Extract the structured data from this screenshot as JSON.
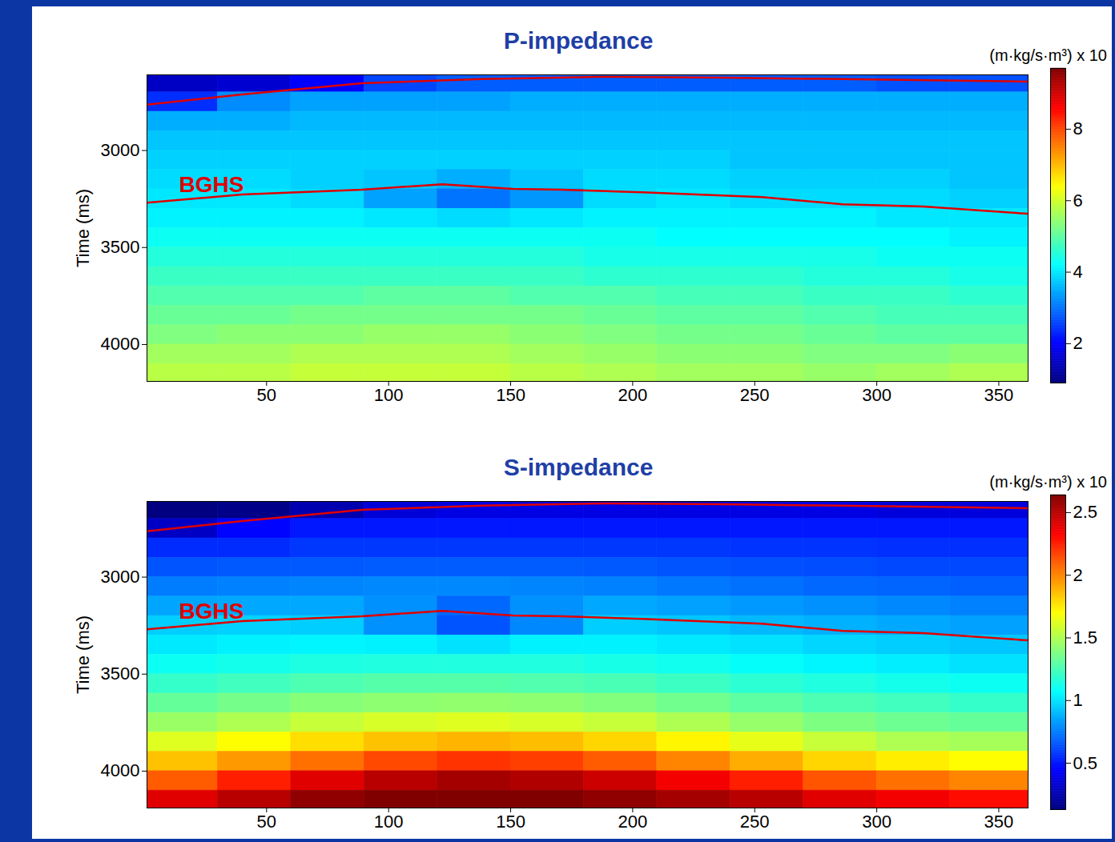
{
  "chart_data": [
    {
      "type": "heatmap",
      "title": "P-impedance",
      "ylabel": "Time (ms)",
      "xlim": [
        1,
        362
      ],
      "xticks": [
        50,
        100,
        150,
        200,
        250,
        300,
        350
      ],
      "ylim": [
        2610,
        4190
      ],
      "yticks": [
        3000,
        3500,
        4000
      ],
      "colorbar_label": "(m·kg/s·m³) x 10",
      "colorbar_range": [
        0.9,
        9.7
      ],
      "colorbar_ticks": [
        2,
        4,
        6,
        8
      ],
      "cells": {
        "x": [
          15,
          45,
          75,
          105,
          135,
          165,
          195,
          225,
          255,
          285,
          315,
          345
        ],
        "y": [
          2650,
          2750,
          2850,
          2950,
          3050,
          3150,
          3250,
          3350,
          3450,
          3550,
          3650,
          3750,
          3850,
          3950,
          4050,
          4150
        ],
        "values": [
          [
            1.5,
            1.6,
            2.0,
            2.6,
            2.8,
            2.8,
            2.8,
            2.8,
            2.8,
            2.8,
            2.7,
            2.7
          ],
          [
            2.4,
            3.2,
            3.4,
            3.4,
            3.4,
            3.5,
            3.5,
            3.5,
            3.5,
            3.5,
            3.5,
            3.5
          ],
          [
            3.5,
            3.5,
            3.6,
            3.6,
            3.6,
            3.6,
            3.6,
            3.6,
            3.6,
            3.6,
            3.6,
            3.6
          ],
          [
            3.7,
            3.7,
            3.7,
            3.7,
            3.7,
            3.7,
            3.7,
            3.7,
            3.7,
            3.7,
            3.7,
            3.7
          ],
          [
            3.8,
            3.8,
            3.8,
            3.8,
            3.8,
            3.8,
            3.8,
            3.8,
            3.7,
            3.7,
            3.7,
            3.7
          ],
          [
            3.9,
            3.9,
            3.8,
            3.7,
            3.5,
            3.7,
            3.9,
            3.9,
            3.8,
            3.8,
            3.8,
            3.7
          ],
          [
            4.0,
            4.0,
            3.9,
            3.4,
            3.0,
            3.3,
            3.9,
            4.0,
            3.9,
            3.9,
            3.9,
            3.8
          ],
          [
            4.1,
            4.1,
            4.1,
            4.0,
            3.9,
            4.0,
            4.1,
            4.1,
            4.1,
            4.1,
            4.0,
            4.0
          ],
          [
            4.3,
            4.3,
            4.3,
            4.3,
            4.3,
            4.3,
            4.3,
            4.2,
            4.2,
            4.2,
            4.2,
            4.1
          ],
          [
            4.5,
            4.5,
            4.5,
            4.5,
            4.5,
            4.5,
            4.4,
            4.4,
            4.4,
            4.4,
            4.3,
            4.3
          ],
          [
            4.7,
            4.7,
            4.7,
            4.7,
            4.7,
            4.7,
            4.6,
            4.6,
            4.6,
            4.5,
            4.5,
            4.4
          ],
          [
            4.9,
            4.9,
            4.9,
            5.0,
            5.0,
            4.9,
            4.9,
            4.8,
            4.8,
            4.7,
            4.7,
            4.6
          ],
          [
            5.1,
            5.1,
            5.2,
            5.2,
            5.2,
            5.2,
            5.1,
            5.0,
            5.0,
            4.9,
            4.8,
            4.8
          ],
          [
            5.3,
            5.4,
            5.4,
            5.5,
            5.5,
            5.4,
            5.3,
            5.2,
            5.2,
            5.1,
            5.0,
            5.0
          ],
          [
            5.6,
            5.6,
            5.7,
            5.7,
            5.7,
            5.6,
            5.5,
            5.4,
            5.4,
            5.3,
            5.3,
            5.4
          ],
          [
            5.8,
            5.8,
            5.9,
            5.9,
            5.9,
            5.8,
            5.7,
            5.6,
            5.6,
            5.5,
            5.6,
            5.7
          ]
        ]
      },
      "horizons": [
        {
          "color": "#e00000",
          "x": [
            1,
            40,
            89,
            138,
            187,
            237,
            286,
            362
          ],
          "values": [
            2764,
            2711,
            2653,
            2632,
            2620,
            2624,
            2632,
            2645
          ]
        },
        {
          "name": "BGHS",
          "color": "#e00000",
          "x": [
            1,
            40,
            89,
            122,
            151,
            171,
            204,
            253,
            286,
            319,
            362
          ],
          "values": [
            3269,
            3227,
            3202,
            3174,
            3198,
            3202,
            3215,
            3240,
            3277,
            3289,
            3326
          ]
        }
      ]
    },
    {
      "type": "heatmap",
      "title": "S-impedance",
      "ylabel": "Time (ms)",
      "xlim": [
        1,
        362
      ],
      "xticks": [
        50,
        100,
        150,
        200,
        250,
        300,
        350
      ],
      "ylim": [
        2610,
        4190
      ],
      "yticks": [
        3000,
        3500,
        4000
      ],
      "colorbar_label": "(m·kg/s·m³) x 10",
      "colorbar_range": [
        0.13,
        2.64
      ],
      "colorbar_ticks": [
        0.5,
        1,
        1.5,
        2,
        2.5
      ],
      "cells": {
        "x": [
          15,
          45,
          75,
          105,
          135,
          165,
          195,
          225,
          255,
          285,
          315,
          345
        ],
        "y": [
          2650,
          2750,
          2850,
          2950,
          3050,
          3150,
          3250,
          3350,
          3450,
          3550,
          3650,
          3750,
          3850,
          3950,
          4050,
          4150
        ],
        "values": [
          [
            0.13,
            0.15,
            0.25,
            0.35,
            0.38,
            0.38,
            0.38,
            0.38,
            0.38,
            0.38,
            0.36,
            0.36
          ],
          [
            0.3,
            0.45,
            0.5,
            0.5,
            0.5,
            0.5,
            0.5,
            0.5,
            0.5,
            0.5,
            0.5,
            0.5
          ],
          [
            0.55,
            0.55,
            0.58,
            0.58,
            0.58,
            0.58,
            0.58,
            0.58,
            0.57,
            0.57,
            0.56,
            0.56
          ],
          [
            0.65,
            0.66,
            0.66,
            0.67,
            0.67,
            0.67,
            0.66,
            0.65,
            0.64,
            0.63,
            0.62,
            0.62
          ],
          [
            0.75,
            0.76,
            0.77,
            0.78,
            0.78,
            0.77,
            0.76,
            0.74,
            0.72,
            0.7,
            0.69,
            0.68
          ],
          [
            0.85,
            0.86,
            0.86,
            0.8,
            0.7,
            0.8,
            0.86,
            0.84,
            0.82,
            0.8,
            0.78,
            0.76
          ],
          [
            0.95,
            0.96,
            0.95,
            0.8,
            0.65,
            0.78,
            0.95,
            0.93,
            0.9,
            0.88,
            0.86,
            0.84
          ],
          [
            1.02,
            1.04,
            1.05,
            1.04,
            1.0,
            1.04,
            1.04,
            1.02,
            1.0,
            0.97,
            0.95,
            0.93
          ],
          [
            1.1,
            1.12,
            1.14,
            1.15,
            1.15,
            1.15,
            1.13,
            1.11,
            1.08,
            1.05,
            1.03,
            1.0
          ],
          [
            1.2,
            1.23,
            1.26,
            1.28,
            1.28,
            1.27,
            1.25,
            1.22,
            1.18,
            1.15,
            1.12,
            1.1
          ],
          [
            1.32,
            1.36,
            1.4,
            1.42,
            1.43,
            1.42,
            1.39,
            1.35,
            1.3,
            1.26,
            1.23,
            1.2
          ],
          [
            1.45,
            1.5,
            1.56,
            1.6,
            1.62,
            1.6,
            1.56,
            1.5,
            1.44,
            1.38,
            1.34,
            1.32
          ],
          [
            1.62,
            1.7,
            1.78,
            1.85,
            1.88,
            1.86,
            1.8,
            1.72,
            1.64,
            1.56,
            1.5,
            1.48
          ],
          [
            1.85,
            1.95,
            2.05,
            2.15,
            2.2,
            2.17,
            2.1,
            2.0,
            1.9,
            1.8,
            1.74,
            1.7
          ],
          [
            2.1,
            2.25,
            2.4,
            2.5,
            2.55,
            2.52,
            2.45,
            2.35,
            2.25,
            2.12,
            2.05,
            2.0
          ],
          [
            2.4,
            2.5,
            2.6,
            2.64,
            2.64,
            2.64,
            2.6,
            2.55,
            2.5,
            2.4,
            2.35,
            2.3
          ]
        ]
      },
      "horizons": [
        {
          "color": "#e00000",
          "x": [
            1,
            40,
            89,
            138,
            187,
            237,
            286,
            362
          ],
          "values": [
            2764,
            2711,
            2653,
            2632,
            2620,
            2624,
            2632,
            2645
          ]
        },
        {
          "name": "BGHS",
          "color": "#e00000",
          "x": [
            1,
            40,
            89,
            122,
            151,
            171,
            204,
            253,
            286,
            319,
            362
          ],
          "values": [
            3269,
            3227,
            3202,
            3174,
            3198,
            3202,
            3215,
            3240,
            3277,
            3289,
            3326
          ]
        }
      ]
    }
  ]
}
